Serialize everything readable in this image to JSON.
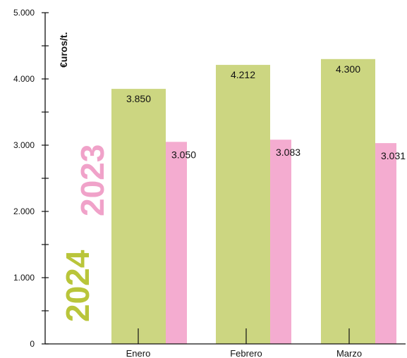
{
  "chart_data": {
    "type": "bar",
    "title": "",
    "categories": [
      "Enero",
      "Febrero",
      "Marzo"
    ],
    "series": [
      {
        "name": "2024",
        "color": "#ccd681",
        "values": [
          3850,
          4212,
          4300
        ]
      },
      {
        "name": "2023",
        "color": "#f4acd0",
        "values": [
          3050,
          3083,
          3031
        ]
      }
    ],
    "value_labels": [
      [
        "3.850",
        "4.212",
        "4.300"
      ],
      [
        "3.050",
        "3.083",
        "3.031"
      ]
    ],
    "ylabel": "€uros/t.",
    "ylim": [
      0,
      5000
    ],
    "yticks": [
      0,
      1000,
      2000,
      3000,
      4000,
      5000
    ],
    "ytick_labels": [
      "0",
      "1.000",
      "2.000",
      "3.000",
      "4.000",
      "5.000"
    ],
    "grid": false,
    "legend": "left-vertical"
  }
}
